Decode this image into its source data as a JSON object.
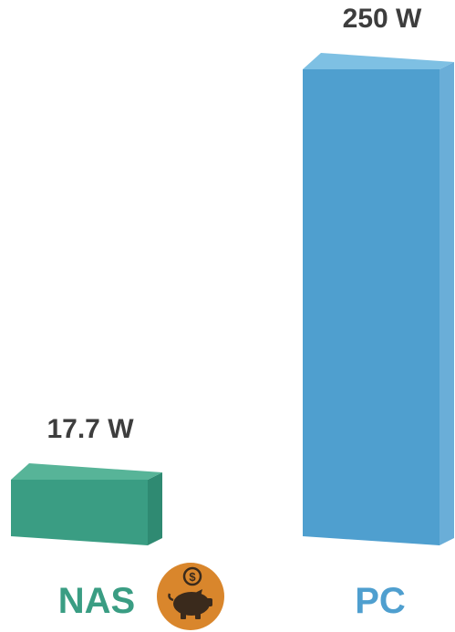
{
  "chart_data": {
    "type": "bar",
    "categories": [
      "NAS",
      "PC"
    ],
    "values": [
      17.7,
      250
    ],
    "data_labels": [
      "17.7 W",
      "250 W"
    ],
    "unit": "W",
    "colors": {
      "NAS": {
        "front": "#3a9d83",
        "side": "#2f8a72",
        "top": "#57b498",
        "label": "#3a9d83"
      },
      "PC": {
        "front": "#4f9fcf",
        "side": "#6aaed8",
        "top": "#7ec0e3",
        "label": "#4f9fcf"
      },
      "value_text": "#3d3d3d"
    },
    "title": "",
    "xlabel": "",
    "ylabel": "",
    "grid": false,
    "legend": "none"
  },
  "decor": {
    "piggy_icon": {
      "name": "piggy-bank-coin-icon",
      "bg": "#d9862c",
      "fg": "#3a2a1c"
    }
  }
}
